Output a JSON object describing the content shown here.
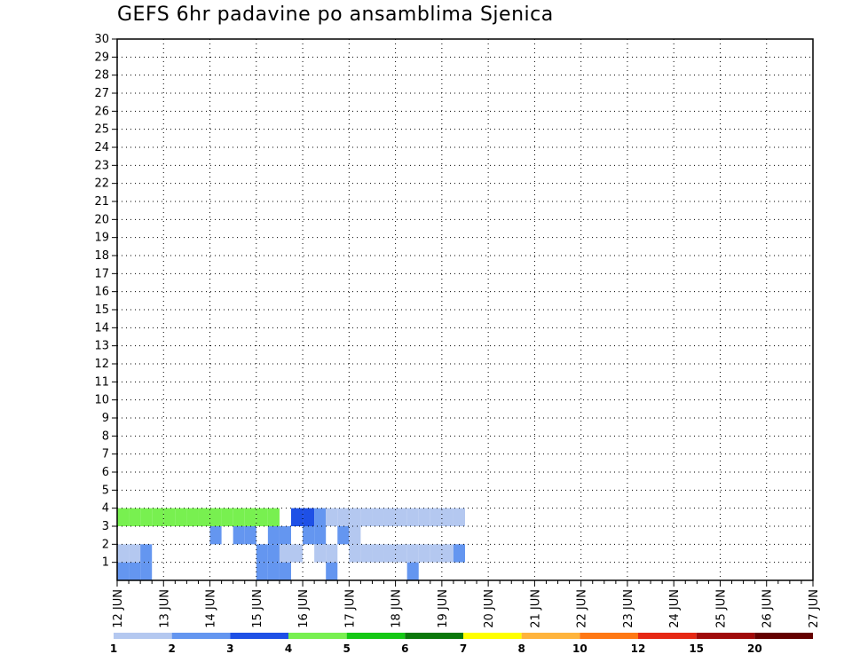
{
  "chart_data": {
    "type": "heatmap",
    "title": "GEFS 6hr padavine po ansamblima Sjenica",
    "x_tick_labels": [
      "12 JUN",
      "13 JUN",
      "14 JUN",
      "15 JUN",
      "16 JUN",
      "17 JUN",
      "18 JUN",
      "19 JUN",
      "20 JUN",
      "21 JUN",
      "22 JUN",
      "23 JUN",
      "24 JUN",
      "25 JUN",
      "26 JUN",
      "27 JUN"
    ],
    "y_tick_labels": [
      "1",
      "2",
      "3",
      "4",
      "5",
      "6",
      "7",
      "8",
      "9",
      "10",
      "11",
      "12",
      "13",
      "14",
      "15",
      "16",
      "17",
      "18",
      "19",
      "20",
      "21",
      "22",
      "23",
      "24",
      "25",
      "26",
      "27",
      "28",
      "29",
      "30"
    ],
    "x_steps_per_day": 4,
    "x_range_steps": [
      0,
      60
    ],
    "y_range": [
      0,
      30
    ],
    "grid": true,
    "colorbar_position": "bottom",
    "colorbar": {
      "levels": [
        "1",
        "2",
        "3",
        "4",
        "5",
        "6",
        "7",
        "8",
        "10",
        "12",
        "15",
        "20"
      ],
      "colors": [
        "#b4c8f0",
        "#6496f0",
        "#1e50e6",
        "#78f050",
        "#14c814",
        "#0a780a",
        "#ffff00",
        "#ffb43c",
        "#ff7814",
        "#e62814",
        "#a00a0a",
        "#640000"
      ]
    },
    "cells": [
      [
        1,
        1,
        2
      ],
      [
        2,
        1,
        2
      ],
      [
        3,
        1,
        2
      ],
      [
        13,
        1,
        2
      ],
      [
        14,
        1,
        2
      ],
      [
        15,
        1,
        2
      ],
      [
        19,
        1,
        2
      ],
      [
        26,
        1,
        2
      ],
      [
        1,
        2,
        1
      ],
      [
        2,
        2,
        1
      ],
      [
        3,
        2,
        2
      ],
      [
        13,
        2,
        2
      ],
      [
        14,
        2,
        2
      ],
      [
        15,
        2,
        1
      ],
      [
        16,
        2,
        1
      ],
      [
        18,
        2,
        1
      ],
      [
        19,
        2,
        1
      ],
      [
        21,
        2,
        1
      ],
      [
        22,
        2,
        1
      ],
      [
        23,
        2,
        1
      ],
      [
        24,
        2,
        1
      ],
      [
        25,
        2,
        1
      ],
      [
        26,
        2,
        1
      ],
      [
        27,
        2,
        1
      ],
      [
        28,
        2,
        1
      ],
      [
        29,
        2,
        1
      ],
      [
        30,
        2,
        2
      ],
      [
        9,
        3,
        2
      ],
      [
        11,
        3,
        2
      ],
      [
        12,
        3,
        2
      ],
      [
        14,
        3,
        2
      ],
      [
        15,
        3,
        2
      ],
      [
        17,
        3,
        2
      ],
      [
        18,
        3,
        2
      ],
      [
        20,
        3,
        2
      ],
      [
        21,
        3,
        1
      ],
      [
        1,
        4,
        4
      ],
      [
        2,
        4,
        4
      ],
      [
        3,
        4,
        4
      ],
      [
        4,
        4,
        4
      ],
      [
        5,
        4,
        4
      ],
      [
        6,
        4,
        4
      ],
      [
        7,
        4,
        4
      ],
      [
        8,
        4,
        4
      ],
      [
        9,
        4,
        4
      ],
      [
        10,
        4,
        4
      ],
      [
        11,
        4,
        4
      ],
      [
        12,
        4,
        4
      ],
      [
        13,
        4,
        4
      ],
      [
        14,
        4,
        4
      ],
      [
        16,
        4,
        3
      ],
      [
        17,
        4,
        3
      ],
      [
        18,
        4,
        2
      ],
      [
        19,
        4,
        1
      ],
      [
        20,
        4,
        1
      ],
      [
        21,
        4,
        1
      ],
      [
        22,
        4,
        1
      ],
      [
        23,
        4,
        1
      ],
      [
        24,
        4,
        1
      ],
      [
        25,
        4,
        1
      ],
      [
        26,
        4,
        1
      ],
      [
        27,
        4,
        1
      ],
      [
        28,
        4,
        1
      ],
      [
        29,
        4,
        1
      ],
      [
        30,
        4,
        1
      ]
    ]
  },
  "colorbar_labels": [
    "1",
    "2",
    "3",
    "4",
    "5",
    "6",
    "7",
    "8",
    "10",
    "12",
    "15",
    "20"
  ]
}
